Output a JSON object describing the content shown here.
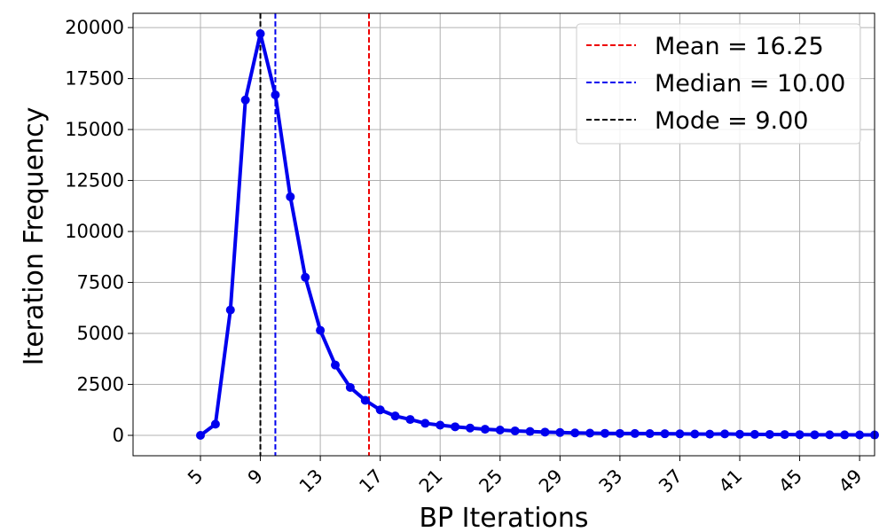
{
  "chart_data": {
    "type": "line",
    "xlabel": "BP Iterations",
    "ylabel": "Iteration Frequency",
    "xlim": [
      0.5,
      50.0
    ],
    "ylim": [
      -1000,
      20700
    ],
    "x_ticks": [
      5,
      9,
      13,
      17,
      21,
      25,
      29,
      33,
      37,
      41,
      45,
      49
    ],
    "y_ticks": [
      0,
      2500,
      5000,
      7500,
      10000,
      12500,
      15000,
      17500,
      20000
    ],
    "grid": true,
    "legend_position": "top-right",
    "series": [
      {
        "color": "#0000ee",
        "marker": "circle",
        "x": [
          5,
          6,
          7,
          8,
          9,
          10,
          11,
          12,
          13,
          14,
          15,
          16,
          17,
          18,
          19,
          20,
          21,
          22,
          23,
          24,
          25,
          26,
          27,
          28,
          29,
          30,
          31,
          32,
          33,
          34,
          35,
          36,
          37,
          38,
          39,
          40,
          41,
          42,
          43,
          44,
          45,
          46,
          47,
          48,
          49,
          50
        ],
        "y": [
          0,
          550,
          6150,
          16450,
          19700,
          16700,
          11700,
          7750,
          5150,
          3450,
          2350,
          1720,
          1250,
          950,
          780,
          590,
          500,
          420,
          360,
          300,
          260,
          220,
          190,
          160,
          140,
          120,
          110,
          100,
          95,
          90,
          85,
          80,
          75,
          65,
          60,
          70,
          55,
          50,
          45,
          40,
          35,
          30,
          28,
          25,
          22,
          20
        ]
      }
    ],
    "reference_lines": [
      {
        "x": 16.25,
        "color": "#ee0000",
        "label": "Mean = 16.25"
      },
      {
        "x": 10.0,
        "color": "#0000ee",
        "label": "Median = 10.00"
      },
      {
        "x": 9.0,
        "color": "#000000",
        "label": "Mode = 9.00"
      }
    ]
  }
}
